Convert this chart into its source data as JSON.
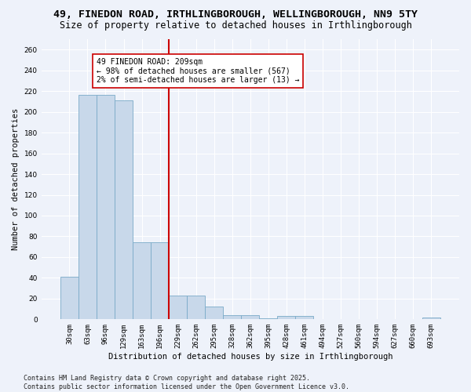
{
  "title1": "49, FINEDON ROAD, IRTHLINGBOROUGH, WELLINGBOROUGH, NN9 5TY",
  "title2": "Size of property relative to detached houses in Irthlingborough",
  "xlabel": "Distribution of detached houses by size in Irthlingborough",
  "ylabel": "Number of detached properties",
  "categories": [
    "30sqm",
    "63sqm",
    "96sqm",
    "129sqm",
    "163sqm",
    "196sqm",
    "229sqm",
    "262sqm",
    "295sqm",
    "328sqm",
    "362sqm",
    "395sqm",
    "428sqm",
    "461sqm",
    "494sqm",
    "527sqm",
    "560sqm",
    "594sqm",
    "627sqm",
    "660sqm",
    "693sqm"
  ],
  "values": [
    41,
    216,
    216,
    211,
    74,
    74,
    23,
    23,
    12,
    4,
    4,
    1,
    3,
    3,
    0,
    0,
    0,
    0,
    0,
    0,
    2
  ],
  "bar_color": "#c8d8ea",
  "bar_edge_color": "#7aaac8",
  "vline_x": 6,
  "vline_color": "#cc0000",
  "annotation_text": "49 FINEDON ROAD: 209sqm\n← 98% of detached houses are smaller (567)\n2% of semi-detached houses are larger (13) →",
  "annotation_box_color": "#ffffff",
  "annotation_box_edge": "#cc0000",
  "ylim": [
    0,
    270
  ],
  "yticks": [
    0,
    20,
    40,
    60,
    80,
    100,
    120,
    140,
    160,
    180,
    200,
    220,
    240,
    260
  ],
  "footer1": "Contains HM Land Registry data © Crown copyright and database right 2025.",
  "footer2": "Contains public sector information licensed under the Open Government Licence v3.0.",
  "background_color": "#eef2fa",
  "grid_color": "#ffffff",
  "title_fontsize": 9.5,
  "subtitle_fontsize": 8.5,
  "label_fontsize": 7.5,
  "tick_fontsize": 6.5,
  "footer_fontsize": 6.0,
  "annot_fontsize": 7.0
}
